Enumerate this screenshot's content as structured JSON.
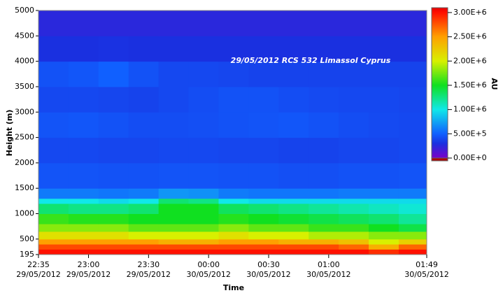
{
  "chart_data": {
    "type": "heatmap",
    "annotation": "29/05/2012 RCS 532 Limassol Cyprus",
    "xlabel": "Time",
    "ylabel": "Height (m)",
    "colorbar_label": "AU",
    "xlim": [
      "2012-05-29T22:35",
      "2012-05-30T01:49"
    ],
    "xticks": [
      {
        "value": "2012-05-29T22:35",
        "label": "22:35",
        "date": "29/05/2012"
      },
      {
        "value": "2012-05-29T23:00",
        "label": "23:00",
        "date": "29/05/2012"
      },
      {
        "value": "2012-05-29T23:30",
        "label": "23:30",
        "date": "29/05/2012"
      },
      {
        "value": "2012-05-30T00:00",
        "label": "00:00",
        "date": "30/05/2012"
      },
      {
        "value": "2012-05-30T00:30",
        "label": "00:30",
        "date": "30/05/2012"
      },
      {
        "value": "2012-05-30T01:00",
        "label": "01:00",
        "date": "30/05/2012"
      },
      {
        "value": "2012-05-30T01:49",
        "label": "01:49",
        "date": "30/05/2012"
      }
    ],
    "ylim": [
      195,
      5000
    ],
    "yticks": [
      195,
      500,
      1000,
      1500,
      2000,
      2500,
      3000,
      3500,
      4000,
      4500,
      5000
    ],
    "zlim": [
      0,
      3100000
    ],
    "zticks": [
      {
        "value": 0,
        "label": "0.00E+0"
      },
      {
        "value": 500000,
        "label": "5.00E+5"
      },
      {
        "value": 1000000,
        "label": "1.00E+6"
      },
      {
        "value": 1500000,
        "label": "1.50E+6"
      },
      {
        "value": 2000000,
        "label": "2.00E+6"
      },
      {
        "value": 2500000,
        "label": "2.50E+6"
      },
      {
        "value": 3000000,
        "label": "3.00E+6"
      }
    ],
    "colorscale": [
      [
        0,
        "#7a00c8"
      ],
      [
        300000,
        "#1a30e0"
      ],
      [
        500000,
        "#1060ff"
      ],
      [
        1000000,
        "#10e8e8"
      ],
      [
        1500000,
        "#10e020"
      ],
      [
        2000000,
        "#d8f000"
      ],
      [
        2500000,
        "#ffa000"
      ],
      [
        3000000,
        "#ff1000"
      ],
      [
        3100000,
        "#e80000"
      ]
    ],
    "x": [
      "2012-05-29T22:35",
      "2012-05-29T22:50",
      "2012-05-29T23:05",
      "2012-05-29T23:20",
      "2012-05-29T23:35",
      "2012-05-29T23:50",
      "2012-05-30T00:05",
      "2012-05-30T00:20",
      "2012-05-30T00:35",
      "2012-05-30T00:50",
      "2012-05-30T01:05",
      "2012-05-30T01:20",
      "2012-05-30T01:35"
    ],
    "y": [
      195,
      300,
      400,
      500,
      650,
      800,
      1000,
      1200,
      1300,
      1500,
      2000,
      2500,
      3000,
      3500,
      4000,
      4500
    ],
    "z": [
      [
        3000000,
        3000000,
        3000000,
        3000000,
        3000000,
        3000000,
        3000000,
        3000000,
        3000000,
        3000000,
        3000000,
        2900000,
        3000000
      ],
      [
        2800000,
        2800000,
        2800000,
        2800000,
        2800000,
        2800000,
        2800000,
        2800000,
        2800000,
        2800000,
        2700000,
        2400000,
        2700000
      ],
      [
        2500000,
        2500000,
        2500000,
        2500000,
        2400000,
        2400000,
        2500000,
        2500000,
        2400000,
        2400000,
        2300000,
        2000000,
        2200000
      ],
      [
        2100000,
        2100000,
        2100000,
        2000000,
        2000000,
        2000000,
        2100000,
        2000000,
        2000000,
        1900000,
        1900000,
        1800000,
        1800000
      ],
      [
        1800000,
        1800000,
        1800000,
        1700000,
        1700000,
        1700000,
        1800000,
        1700000,
        1700000,
        1600000,
        1600000,
        1500000,
        1400000
      ],
      [
        1600000,
        1550000,
        1550000,
        1500000,
        1500000,
        1500000,
        1550000,
        1500000,
        1450000,
        1400000,
        1350000,
        1300000,
        1200000
      ],
      [
        1300000,
        1250000,
        1250000,
        1300000,
        1500000,
        1500000,
        1350000,
        1300000,
        1250000,
        1200000,
        1150000,
        1100000,
        1050000
      ],
      [
        1000000,
        1000000,
        950000,
        1000000,
        1300000,
        1250000,
        1000000,
        950000,
        950000,
        950000,
        950000,
        950000,
        950000
      ],
      [
        600000,
        600000,
        580000,
        600000,
        700000,
        680000,
        600000,
        580000,
        580000,
        580000,
        600000,
        600000,
        600000
      ],
      [
        450000,
        450000,
        440000,
        440000,
        450000,
        450000,
        440000,
        440000,
        430000,
        430000,
        440000,
        440000,
        450000
      ],
      [
        400000,
        400000,
        390000,
        390000,
        400000,
        400000,
        390000,
        390000,
        380000,
        380000,
        390000,
        390000,
        400000
      ],
      [
        450000,
        460000,
        440000,
        420000,
        420000,
        430000,
        440000,
        450000,
        460000,
        440000,
        420000,
        410000,
        400000
      ],
      [
        400000,
        400000,
        390000,
        380000,
        400000,
        420000,
        440000,
        440000,
        420000,
        410000,
        400000,
        400000,
        390000
      ],
      [
        440000,
        460000,
        500000,
        440000,
        400000,
        400000,
        390000,
        380000,
        380000,
        380000,
        380000,
        380000,
        380000
      ],
      [
        300000,
        300000,
        310000,
        300000,
        300000,
        300000,
        300000,
        300000,
        300000,
        300000,
        300000,
        300000,
        300000
      ],
      [
        250000,
        250000,
        250000,
        250000,
        250000,
        250000,
        250000,
        250000,
        250000,
        250000,
        250000,
        250000,
        250000
      ]
    ]
  }
}
